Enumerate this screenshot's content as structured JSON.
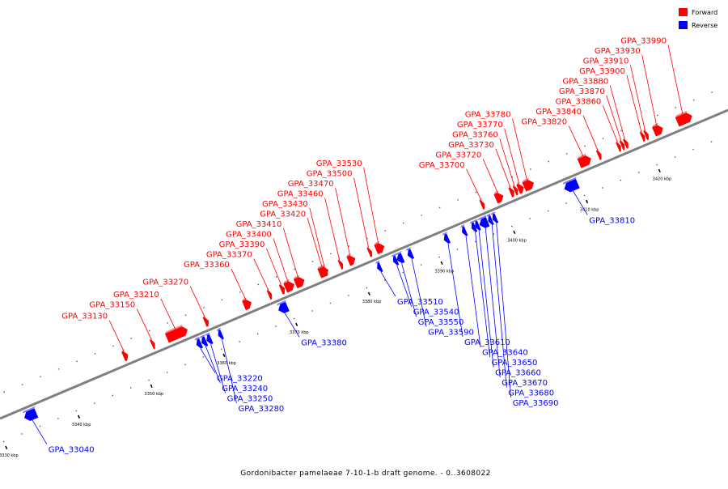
{
  "colors": {
    "forward": "#ff0000",
    "reverse": "#0000ff",
    "axis": "#808080",
    "tick": "#000000"
  },
  "legend": {
    "forward_label": "Forward",
    "reverse_label": "Reverse"
  },
  "caption": "Gordonibacter pamelaeae 7-10-1-b draft genome. - 0..3608022",
  "scale": {
    "major_tick_step_kbp": 10,
    "ticks": [
      {
        "kbp": 3330,
        "label": "3330 kbp"
      },
      {
        "kbp": 3340,
        "label": "3340 kbp"
      },
      {
        "kbp": 3350,
        "label": "3350 kbp"
      },
      {
        "kbp": 3360,
        "label": "3360 kbp"
      },
      {
        "kbp": 3370,
        "label": "3370 kbp"
      },
      {
        "kbp": 3380,
        "label": "3380 kbp"
      },
      {
        "kbp": 3390,
        "label": "3390 kbp"
      },
      {
        "kbp": 3400,
        "label": "3400 kbp"
      },
      {
        "kbp": 3410,
        "label": "3410 kbp"
      },
      {
        "kbp": 3420,
        "label": "3420 kbp"
      }
    ]
  },
  "genes": [
    {
      "name": "GPA_33040",
      "strand": "reverse",
      "start_kbp": 3333.6,
      "end_kbp": 3335.2
    },
    {
      "name": "GPA_33130",
      "strand": "forward",
      "start_kbp": 3348.2,
      "end_kbp": 3348.8
    },
    {
      "name": "GPA_33150",
      "strand": "forward",
      "start_kbp": 3352.1,
      "end_kbp": 3352.5
    },
    {
      "name": "GPA_33210",
      "strand": "forward",
      "start_kbp": 3354.2,
      "end_kbp": 3357.0
    },
    {
      "name": "GPA_33220",
      "strand": "reverse",
      "start_kbp": 3357.3,
      "end_kbp": 3357.9
    },
    {
      "name": "GPA_33240",
      "strand": "reverse",
      "start_kbp": 3358.0,
      "end_kbp": 3358.6
    },
    {
      "name": "GPA_33250",
      "strand": "reverse",
      "start_kbp": 3358.7,
      "end_kbp": 3359.3
    },
    {
      "name": "GPA_33270",
      "strand": "forward",
      "start_kbp": 3359.4,
      "end_kbp": 3359.9
    },
    {
      "name": "GPA_33280",
      "strand": "reverse",
      "start_kbp": 3360.3,
      "end_kbp": 3360.8
    },
    {
      "name": "GPA_33360",
      "strand": "forward",
      "start_kbp": 3364.8,
      "end_kbp": 3365.8
    },
    {
      "name": "GPA_33370",
      "strand": "forward",
      "start_kbp": 3368.2,
      "end_kbp": 3368.6
    },
    {
      "name": "GPA_33380",
      "strand": "reverse",
      "start_kbp": 3368.6,
      "end_kbp": 3369.8
    },
    {
      "name": "GPA_33390",
      "strand": "forward",
      "start_kbp": 3369.9,
      "end_kbp": 3370.4
    },
    {
      "name": "GPA_33400",
      "strand": "forward",
      "start_kbp": 3370.5,
      "end_kbp": 3371.7
    },
    {
      "name": "GPA_33410",
      "strand": "forward",
      "start_kbp": 3371.9,
      "end_kbp": 3373.1
    },
    {
      "name": "GPA_33420",
      "strand": "forward",
      "start_kbp": 3375.2,
      "end_kbp": 3376.4
    },
    {
      "name": "GPA_33430",
      "strand": "forward",
      "start_kbp": 3375.9,
      "end_kbp": 3376.3
    },
    {
      "name": "GPA_33460",
      "strand": "forward",
      "start_kbp": 3378.0,
      "end_kbp": 3378.4
    },
    {
      "name": "GPA_33470",
      "strand": "forward",
      "start_kbp": 3379.2,
      "end_kbp": 3380.1
    },
    {
      "name": "GPA_33500",
      "strand": "forward",
      "start_kbp": 3382.0,
      "end_kbp": 3382.4
    },
    {
      "name": "GPA_33510",
      "strand": "reverse",
      "start_kbp": 3382.2,
      "end_kbp": 3382.7
    },
    {
      "name": "GPA_33530",
      "strand": "forward",
      "start_kbp": 3383.0,
      "end_kbp": 3384.1
    },
    {
      "name": "GPA_33540",
      "strand": "reverse",
      "start_kbp": 3384.4,
      "end_kbp": 3384.9
    },
    {
      "name": "GPA_33550",
      "strand": "reverse",
      "start_kbp": 3384.9,
      "end_kbp": 3385.7
    },
    {
      "name": "GPA_33590",
      "strand": "reverse",
      "start_kbp": 3386.4,
      "end_kbp": 3387.0
    },
    {
      "name": "GPA_33610",
      "strand": "reverse",
      "start_kbp": 3391.4,
      "end_kbp": 3392.0
    },
    {
      "name": "GPA_33640",
      "strand": "reverse",
      "start_kbp": 3393.9,
      "end_kbp": 3394.4
    },
    {
      "name": "GPA_33650",
      "strand": "reverse",
      "start_kbp": 3395.2,
      "end_kbp": 3395.7
    },
    {
      "name": "GPA_33660",
      "strand": "reverse",
      "start_kbp": 3395.7,
      "end_kbp": 3396.2
    },
    {
      "name": "GPA_33670",
      "strand": "reverse",
      "start_kbp": 3396.3,
      "end_kbp": 3397.4
    },
    {
      "name": "GPA_33680",
      "strand": "reverse",
      "start_kbp": 3397.5,
      "end_kbp": 3398.0
    },
    {
      "name": "GPA_33690",
      "strand": "reverse",
      "start_kbp": 3398.1,
      "end_kbp": 3398.6
    },
    {
      "name": "GPA_33700",
      "strand": "forward",
      "start_kbp": 3397.5,
      "end_kbp": 3397.9
    },
    {
      "name": "GPA_33720",
      "strand": "forward",
      "start_kbp": 3399.5,
      "end_kbp": 3400.5
    },
    {
      "name": "GPA_33730",
      "strand": "forward",
      "start_kbp": 3401.5,
      "end_kbp": 3402.0
    },
    {
      "name": "GPA_33760",
      "strand": "forward",
      "start_kbp": 3402.1,
      "end_kbp": 3402.5
    },
    {
      "name": "GPA_33770",
      "strand": "forward",
      "start_kbp": 3402.6,
      "end_kbp": 3403.3
    },
    {
      "name": "GPA_33780",
      "strand": "forward",
      "start_kbp": 3403.4,
      "end_kbp": 3404.7
    },
    {
      "name": "GPA_33810",
      "strand": "reverse",
      "start_kbp": 3408.0,
      "end_kbp": 3409.8
    },
    {
      "name": "GPA_33820",
      "strand": "forward",
      "start_kbp": 3411.0,
      "end_kbp": 3412.6
    },
    {
      "name": "GPA_33840",
      "strand": "forward",
      "start_kbp": 3413.6,
      "end_kbp": 3414.0
    },
    {
      "name": "GPA_33860",
      "strand": "forward",
      "start_kbp": 3416.3,
      "end_kbp": 3416.7
    },
    {
      "name": "GPA_33870",
      "strand": "forward",
      "start_kbp": 3416.8,
      "end_kbp": 3417.2
    },
    {
      "name": "GPA_33880",
      "strand": "forward",
      "start_kbp": 3417.3,
      "end_kbp": 3417.7
    },
    {
      "name": "GPA_33900",
      "strand": "forward",
      "start_kbp": 3419.6,
      "end_kbp": 3420.0
    },
    {
      "name": "GPA_33910",
      "strand": "forward",
      "start_kbp": 3420.1,
      "end_kbp": 3420.5
    },
    {
      "name": "GPA_33930",
      "strand": "forward",
      "start_kbp": 3421.3,
      "end_kbp": 3422.5
    },
    {
      "name": "GPA_33990",
      "strand": "forward",
      "start_kbp": 3424.5,
      "end_kbp": 3426.5
    }
  ]
}
